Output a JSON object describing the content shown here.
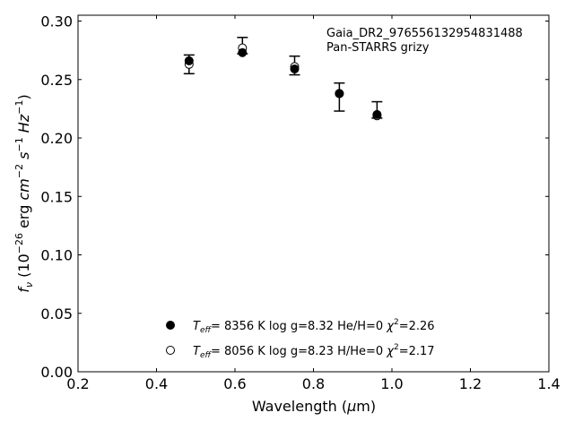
{
  "chart_data": {
    "type": "scatter",
    "annotation_lines": [
      "Gaia_DR2_976556132954831488",
      "Pan-STARRS grizy"
    ],
    "xlabel": {
      "main": "Wavelength (",
      "mu": "μ",
      "unit": "m)"
    },
    "ylabel": {
      "f": "f",
      "fsub": "ν",
      "open": " (10",
      "e1": "−26",
      "mid": " erg ",
      "cm": "cm",
      "e2": "−2",
      "s": " s",
      "e3": "−1",
      "hz": " Hz",
      "e4": "−1",
      "close": ")"
    },
    "xlim": [
      0.2,
      1.4
    ],
    "ylim": [
      0.0,
      0.305
    ],
    "xticks": [
      "0.2",
      "0.4",
      "0.6",
      "0.8",
      "1.0",
      "1.2",
      "1.4"
    ],
    "yticks": [
      "0.00",
      "0.05",
      "0.10",
      "0.15",
      "0.20",
      "0.25",
      "0.30"
    ],
    "observed": [
      {
        "x": 0.483,
        "y": 0.263,
        "err_low": 0.008,
        "err_high": 0.008
      },
      {
        "x": 0.619,
        "y": 0.279,
        "err_low": 0.007,
        "err_high": 0.007
      },
      {
        "x": 0.752,
        "y": 0.262,
        "err_low": 0.008,
        "err_high": 0.008
      },
      {
        "x": 0.866,
        "y": 0.235,
        "err_low": 0.012,
        "err_high": 0.012
      },
      {
        "x": 0.962,
        "y": 0.224,
        "err_low": 0.007,
        "err_high": 0.007
      }
    ],
    "series": [
      {
        "marker": "filled",
        "x": [
          0.483,
          0.619,
          0.752,
          0.866,
          0.962
        ],
        "y": [
          0.266,
          0.273,
          0.259,
          0.238,
          0.22
        ],
        "legend": {
          "teff": "T",
          "teffsub": "eff",
          "eq": "=  8356 K  log g=8.32  He/H=0  ",
          "chi": "χ",
          "chisup": "2",
          "chiv": "=2.26"
        }
      },
      {
        "marker": "open",
        "x": [
          0.483,
          0.619,
          0.752,
          0.866,
          0.962
        ],
        "y": [
          0.263,
          0.277,
          0.261,
          0.238,
          0.219
        ],
        "legend": {
          "teff": "T",
          "teffsub": "eff",
          "eq": "=  8056 K  log g=8.23  H/He=0  ",
          "chi": "χ",
          "chisup": "2",
          "chiv": "=2.17"
        }
      }
    ],
    "grid": false,
    "legend_position": "bottom-center",
    "colors": {
      "marker": "#000000",
      "background": "#ffffff"
    }
  }
}
